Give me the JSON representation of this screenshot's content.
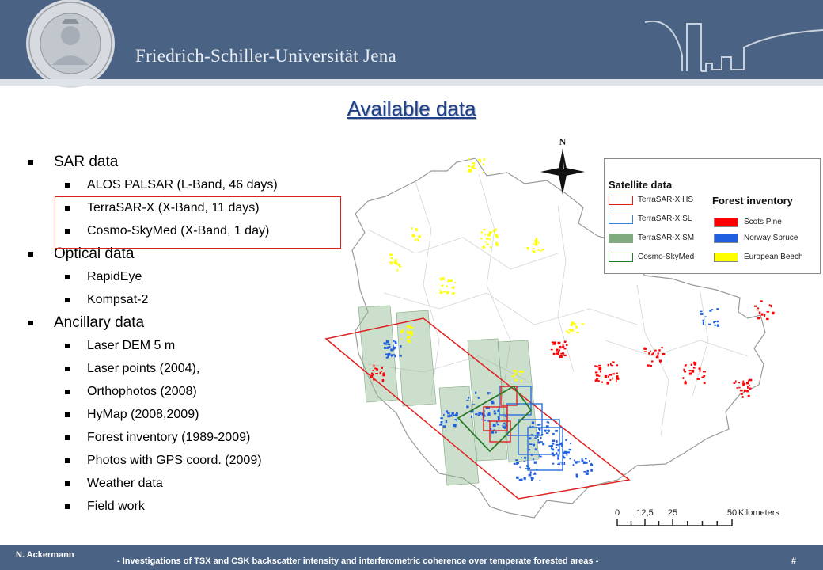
{
  "header": {
    "university": "Friedrich-Schiller-Universität Jena"
  },
  "title": "Available data",
  "outline": [
    {
      "level": 1,
      "text": "SAR data"
    },
    {
      "level": 2,
      "text": "ALOS PALSAR (L-Band, 46 days)"
    },
    {
      "level": 2,
      "text": "TerraSAR-X (X-Band, 11 days)"
    },
    {
      "level": 2,
      "text": "Cosmo-SkyMed (X-Band, 1 day)"
    },
    {
      "level": 1,
      "text": "Optical data"
    },
    {
      "level": 2,
      "text": "RapidEye"
    },
    {
      "level": 2,
      "text": "Kompsat-2"
    },
    {
      "level": 1,
      "text": "Ancillary data"
    },
    {
      "level": 2,
      "text": "Laser DEM 5 m"
    },
    {
      "level": 2,
      "text": "Laser points (2004),"
    },
    {
      "level": 2,
      "text": "Orthophotos (2008)"
    },
    {
      "level": 2,
      "text": "HyMap (2008,2009)"
    },
    {
      "level": 2,
      "text": "Forest inventory (1989-2009)"
    },
    {
      "level": 2,
      "text": "Photos with GPS coord. (2009)"
    },
    {
      "level": 2,
      "text": "Weather data"
    },
    {
      "level": 2,
      "text": "Field work"
    }
  ],
  "map": {
    "north_label": "N",
    "legend": {
      "satellite_title": "Satellite data",
      "forest_title": "Forest inventory",
      "satellite_items": [
        {
          "label": "TerraSAR-X HS",
          "color": "#e02020",
          "style": "outline"
        },
        {
          "label": "TerraSAR-X SL",
          "color": "#3b7fd6",
          "style": "outline"
        },
        {
          "label": "TerraSAR-X SM",
          "color": "#7fa97f",
          "style": "filled"
        },
        {
          "label": "Cosmo-SkyMed",
          "color": "#2a7a2a",
          "style": "outline"
        }
      ],
      "forest_items": [
        {
          "label": "Scots Pine",
          "color": "#ff0000"
        },
        {
          "label": "Norway Spruce",
          "color": "#1f5fe0"
        },
        {
          "label": "European Beech",
          "color": "#ffff00"
        }
      ]
    },
    "scale": {
      "ticks": [
        "0",
        "12,5",
        "25",
        "50"
      ],
      "unit": "Kilometers"
    }
  },
  "footer": {
    "author": "N. Ackermann",
    "caption": "- Investigations of TSX and CSK backscatter intensity and interferometric coherence over temperate forested areas -",
    "page": "#"
  }
}
